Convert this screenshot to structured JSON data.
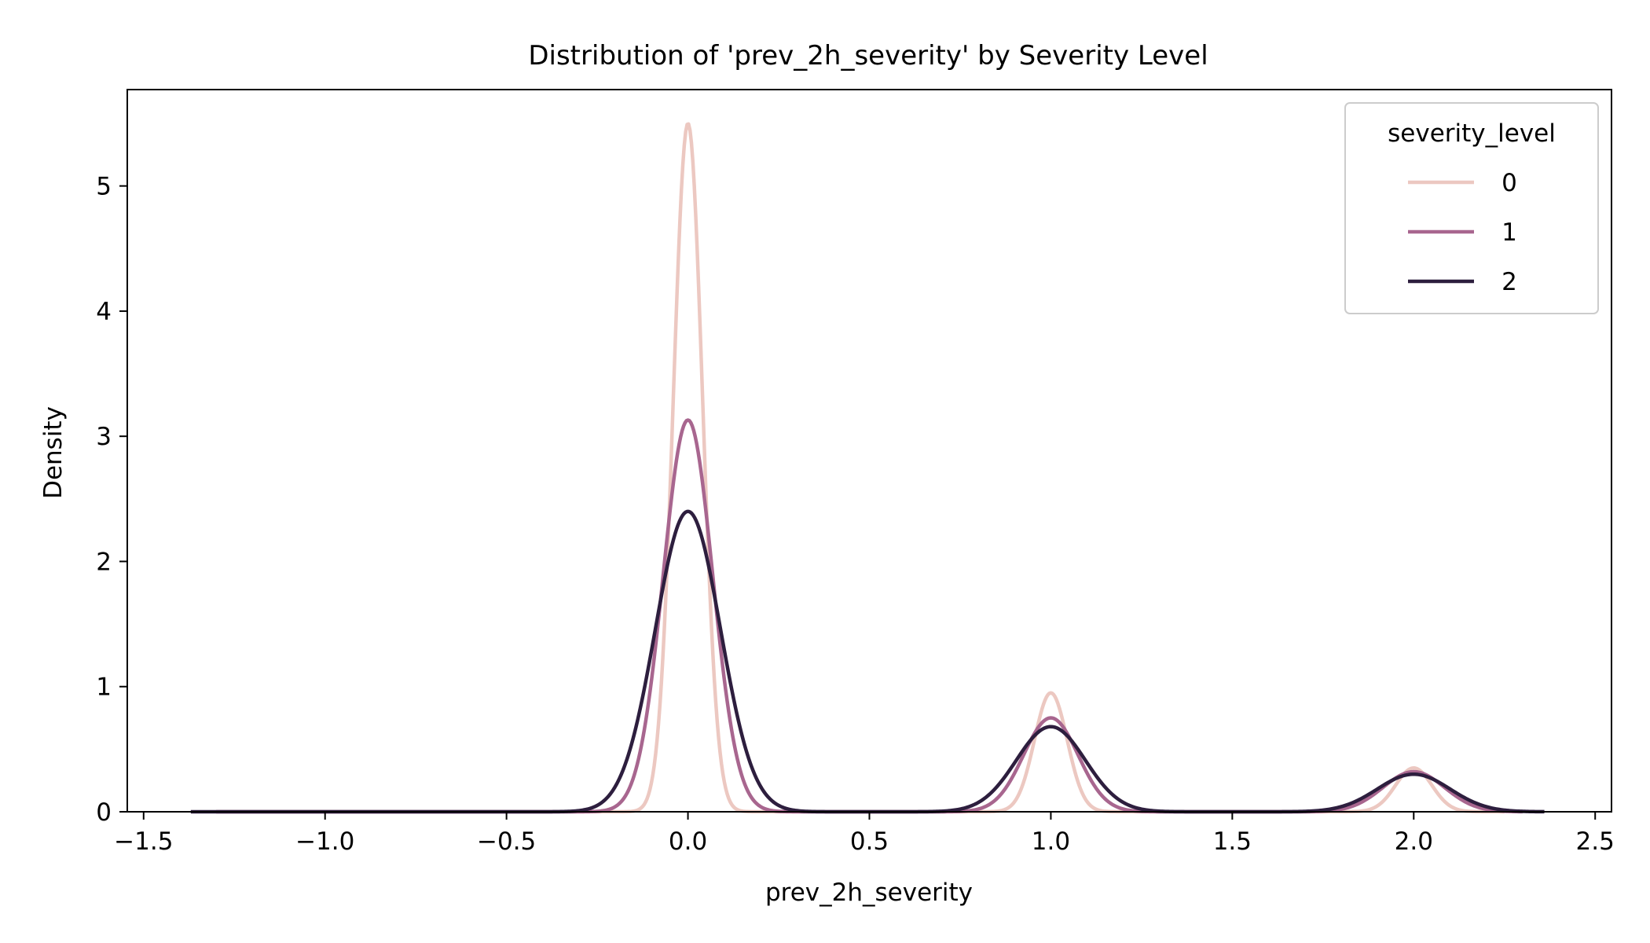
{
  "chart_data": {
    "type": "line",
    "title": "Distribution of 'prev_2h_severity' by Severity Level",
    "xlabel": "prev_2h_severity",
    "ylabel": "Density",
    "xlim": [
      -1.545,
      2.545
    ],
    "ylim": [
      0,
      5.77
    ],
    "xticks": [
      -1.5,
      -1.0,
      -0.5,
      0.0,
      0.5,
      1.0,
      1.5,
      2.0,
      2.5
    ],
    "xtick_labels": [
      "−1.5",
      "−1.0",
      "−0.5",
      "0.0",
      "0.5",
      "1.0",
      "1.5",
      "2.0",
      "2.5"
    ],
    "yticks": [
      0,
      1,
      2,
      3,
      4,
      5
    ],
    "ytick_labels": [
      "0",
      "1",
      "2",
      "3",
      "4",
      "5"
    ],
    "grid": false,
    "legend": {
      "title": "severity_level",
      "position": "top-right"
    },
    "series": [
      {
        "name": "0",
        "color": "#ecc8c1",
        "x_range": [
          -1.3,
          2.25
        ],
        "peaks": [
          {
            "x": 0.0,
            "height": 5.5,
            "sigma": 0.04
          },
          {
            "x": 1.0,
            "height": 0.95,
            "sigma": 0.045
          },
          {
            "x": 2.0,
            "height": 0.35,
            "sigma": 0.05
          }
        ]
      },
      {
        "name": "1",
        "color": "#a8668f",
        "x_range": [
          -1.3,
          2.3
        ],
        "peaks": [
          {
            "x": 0.0,
            "height": 3.13,
            "sigma": 0.068
          },
          {
            "x": 1.0,
            "height": 0.75,
            "sigma": 0.075
          },
          {
            "x": 2.0,
            "height": 0.32,
            "sigma": 0.085
          }
        ]
      },
      {
        "name": "2",
        "color": "#2d1e3e",
        "x_range": [
          -1.37,
          2.36
        ],
        "peaks": [
          {
            "x": 0.0,
            "height": 2.4,
            "sigma": 0.09
          },
          {
            "x": 1.0,
            "height": 0.68,
            "sigma": 0.095
          },
          {
            "x": 2.0,
            "height": 0.3,
            "sigma": 0.1
          }
        ]
      }
    ]
  }
}
